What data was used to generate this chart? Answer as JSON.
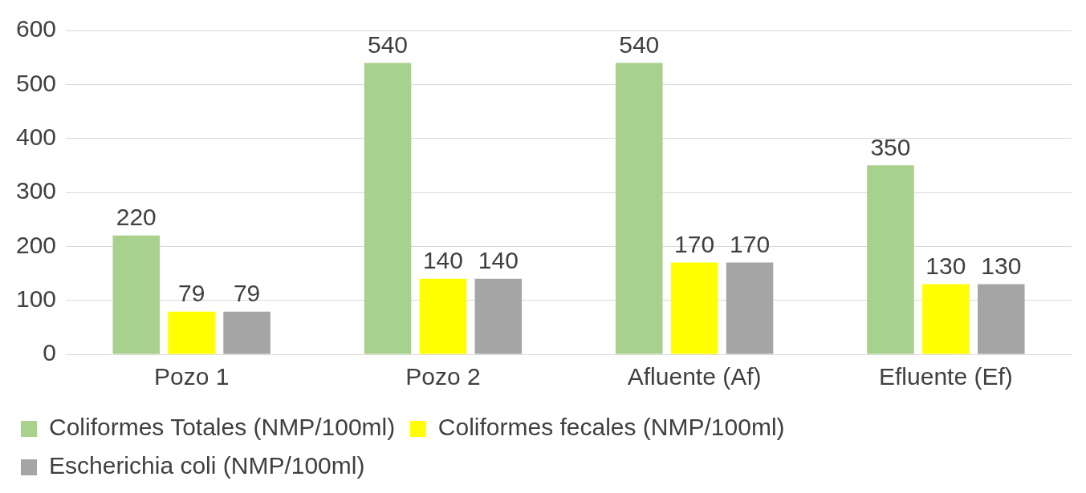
{
  "chart_data": {
    "type": "bar",
    "categories": [
      "Pozo 1",
      "Pozo 2",
      "Afluente (Af)",
      "Efluente (Ef)"
    ],
    "series": [
      {
        "name": "Coliformes Totales (NMP/100ml)",
        "color": "#a9d18e",
        "values": [
          220,
          540,
          540,
          350
        ]
      },
      {
        "name": "Coliformes fecales (NMP/100ml)",
        "color": "#ffff00",
        "values": [
          79,
          140,
          170,
          130
        ]
      },
      {
        "name": "Escherichia coli (NMP/100ml)",
        "color": "#a5a5a5",
        "values": [
          79,
          140,
          170,
          130
        ]
      }
    ],
    "ylim": [
      0,
      600
    ],
    "yticks": [
      0,
      100,
      200,
      300,
      400,
      500,
      600
    ],
    "grid": "y",
    "legend": "bottom",
    "data_labels": true
  }
}
